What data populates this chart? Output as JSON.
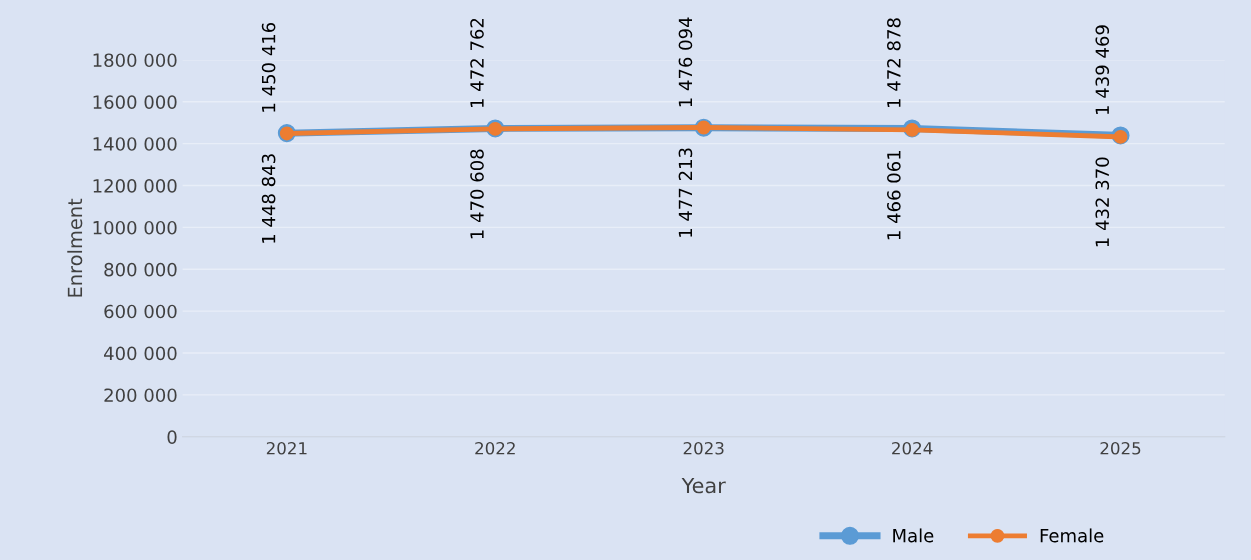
{
  "chart_data": {
    "type": "line",
    "xlabel": "Year",
    "ylabel": "Enrolment",
    "categories": [
      "2021",
      "2022",
      "2023",
      "2024",
      "2025"
    ],
    "series": [
      {
        "name": "Male",
        "color": "#5b9bd5",
        "values": [
          1450416,
          1472762,
          1476094,
          1472878,
          1439469
        ],
        "value_labels": [
          "1 450 416",
          "1 472 762",
          "1 476 094",
          "1 472 878",
          "1 439 469"
        ]
      },
      {
        "name": "Female",
        "color": "#ed7d31",
        "values": [
          1448843,
          1470608,
          1477213,
          1466061,
          1432370
        ],
        "value_labels": [
          "1 448 843",
          "1 470 608",
          "1 477 213",
          "1 466 061",
          "1 432 370"
        ]
      }
    ],
    "ylim": [
      0,
      1800000
    ],
    "yticks": [
      0,
      {
        "value": 200000,
        "label": "200 000"
      },
      {
        "value": 400000,
        "label": "400 000"
      },
      {
        "value": 600000,
        "label": "600 000"
      },
      {
        "value": 800000,
        "label": "800 000"
      },
      {
        "value": 1000000,
        "label": "1000 000"
      },
      {
        "value": 1200000,
        "label": "1200 000"
      },
      {
        "value": 1400000,
        "label": "1400 000"
      },
      {
        "value": 1600000,
        "label": "1600 000"
      },
      {
        "value": 1800000,
        "label": "1800 000"
      }
    ],
    "grid": "y",
    "legend": "bottom right",
    "marker": "circle",
    "line_style": "solid"
  }
}
